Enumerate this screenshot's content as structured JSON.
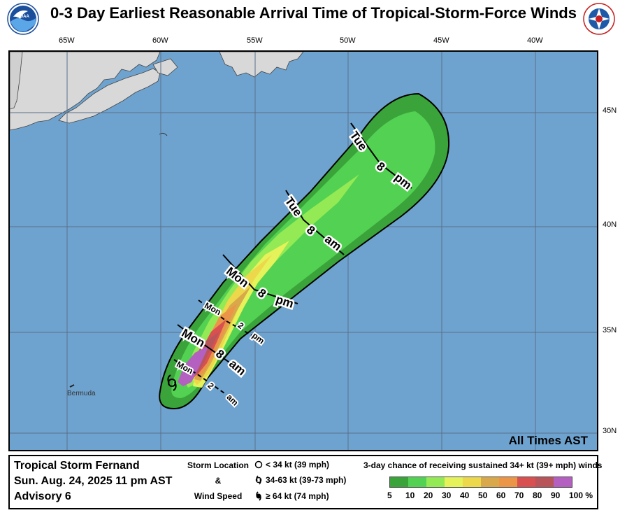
{
  "title": "0-3 Day Earliest Reasonable Arrival Time of Tropical-Storm-Force Winds",
  "logos": {
    "left": "NOAA",
    "right": "NATIONAL WEATHER SERVICE"
  },
  "axes": {
    "lon_labels": [
      "65W",
      "60W",
      "55W",
      "50W",
      "45W",
      "40W"
    ],
    "lat_labels": [
      "45N",
      "40N",
      "35N",
      "30N"
    ]
  },
  "place_labels": {
    "bermuda": "Bermuda"
  },
  "timing_labels": [
    {
      "day": "Tue",
      "hour": "8",
      "ampm": "pm",
      "style": "major"
    },
    {
      "day": "Tue",
      "hour": "8",
      "ampm": "am",
      "style": "major"
    },
    {
      "day": "Mon",
      "hour": "8",
      "ampm": "pm",
      "style": "major"
    },
    {
      "day": "Mon",
      "hour": "2",
      "ampm": "pm",
      "style": "minor"
    },
    {
      "day": "Mon",
      "hour": "8",
      "ampm": "am",
      "style": "major"
    },
    {
      "day": "Mon",
      "hour": "2",
      "ampm": "am",
      "style": "minor"
    }
  ],
  "all_times_label": "All Times AST",
  "storm": {
    "name": "Tropical Storm Fernand",
    "datetime": "Sun. Aug. 24, 2025  11 pm AST",
    "advisory": "Advisory 6"
  },
  "storm_legend": {
    "title_line1": "Storm Location",
    "title_line2": "&",
    "title_line3": "Wind Speed",
    "items": [
      "< 34 kt (39 mph)",
      "34-63 kt (39-73 mph)",
      "≥ 64 kt (74 mph)"
    ]
  },
  "chance_legend": {
    "title": "3-day chance of receiving sustained 34+ kt (39+ mph) winds",
    "labels": [
      "5",
      "10",
      "20",
      "30",
      "40",
      "50",
      "60",
      "70",
      "80",
      "90",
      "100 %"
    ],
    "colors": [
      "#3aa33a",
      "#53d153",
      "#93ea54",
      "#e5f25a",
      "#ecd84a",
      "#d9a84a",
      "#eb9548",
      "#d95050",
      "#b8555a",
      "#b460c0"
    ]
  },
  "colors": {
    "ocean": "#6fa3cf",
    "land": "#d8d8d8",
    "grid": "#5a6f88"
  }
}
